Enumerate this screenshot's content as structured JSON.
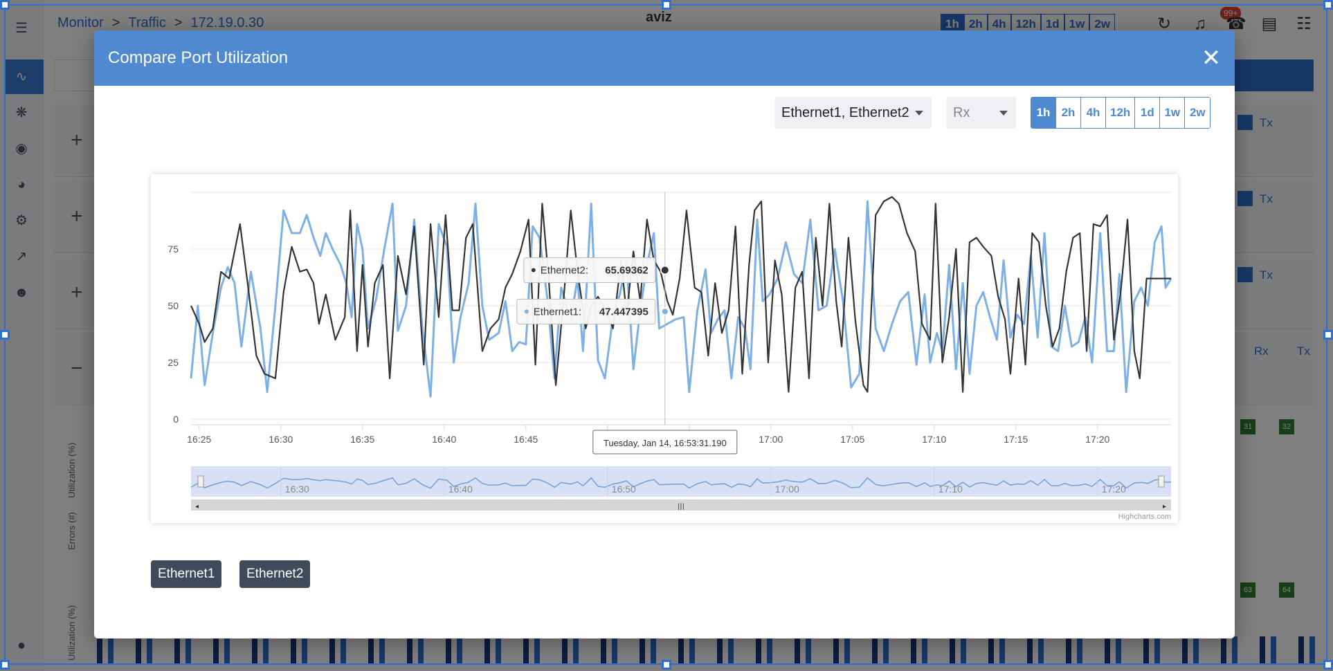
{
  "background": {
    "breadcrumbs": [
      "Monitor",
      "Traffic",
      "172.19.0.30"
    ],
    "logo_text": "aviz",
    "time_ranges": [
      "1h",
      "2h",
      "4h",
      "12h",
      "1d",
      "1w",
      "2w"
    ],
    "notification_badge": "99+",
    "legend_rx": "Rx",
    "legend_tx": "Tx",
    "row_labels": [
      "Utilization (%)",
      "Errors (#)",
      "Utilization (%)"
    ],
    "port_badges": [
      "31",
      "32",
      "63",
      "64"
    ]
  },
  "modal": {
    "title": "Compare Port Utilization",
    "close_icon": "close-icon",
    "port_select": "Ethernet1, Ethernet2",
    "direction_select": "Rx",
    "ranges": [
      "1h",
      "2h",
      "4h",
      "12h",
      "1d",
      "1w",
      "2w"
    ],
    "active_range": "1h",
    "legend_items": [
      "Ethernet1",
      "Ethernet2"
    ],
    "credits": "Highcharts.com"
  },
  "chart_data": {
    "type": "line",
    "title": "",
    "xlabel": "",
    "ylabel": "",
    "ylim": [
      0,
      100
    ],
    "yticks": [
      "0",
      "25",
      "50",
      "75"
    ],
    "xlim": [
      "16:24:30",
      "17:24:30"
    ],
    "xticks": [
      "16:25",
      "16:30",
      "16:35",
      "16:40",
      "16:45",
      "16:50",
      "16:55",
      "17:00",
      "17:05",
      "17:10",
      "17:15",
      "17:20"
    ],
    "navigator_ticks": [
      "16:30",
      "16:40",
      "16:50",
      "17:00",
      "17:10",
      "17:20"
    ],
    "grid": true,
    "legend": "bottom-left",
    "colors": {
      "Ethernet1": "#7cb0e6",
      "Ethernet2": "#333333"
    },
    "tooltip": {
      "header": "Tuesday, Jan 14, 16:53:31.190",
      "x": "16:53:31",
      "entries": [
        {
          "name": "Ethernet2",
          "value": "65.69362"
        },
        {
          "name": "Ethernet1",
          "value": "47.447395"
        }
      ]
    },
    "series": [
      {
        "name": "Ethernet1",
        "points": [
          [
            "16:24:30",
            18
          ],
          [
            "16:24:55",
            50
          ],
          [
            "16:25:20",
            15
          ],
          [
            "16:25:50",
            38
          ],
          [
            "16:26:20",
            58
          ],
          [
            "16:26:45",
            67
          ],
          [
            "16:27:10",
            60
          ],
          [
            "16:27:35",
            32
          ],
          [
            "16:28:10",
            65
          ],
          [
            "16:28:45",
            40
          ],
          [
            "16:29:10",
            12
          ],
          [
            "16:29:40",
            50
          ],
          [
            "16:30:10",
            92
          ],
          [
            "16:30:40",
            82
          ],
          [
            "16:31:10",
            82
          ],
          [
            "16:31:35",
            90
          ],
          [
            "16:32:00",
            80
          ],
          [
            "16:32:25",
            72
          ],
          [
            "16:32:45",
            82
          ],
          [
            "16:33:10",
            75
          ],
          [
            "16:33:40",
            68
          ],
          [
            "16:34:00",
            60
          ],
          [
            "16:34:20",
            45
          ],
          [
            "16:34:40",
            86
          ],
          [
            "16:35:00",
            75
          ],
          [
            "16:35:20",
            40
          ],
          [
            "16:35:50",
            53
          ],
          [
            "16:36:20",
            75
          ],
          [
            "16:36:50",
            95
          ],
          [
            "16:37:10",
            39
          ],
          [
            "16:37:40",
            50
          ],
          [
            "16:38:10",
            88
          ],
          [
            "16:38:40",
            40
          ],
          [
            "16:39:10",
            10
          ],
          [
            "16:39:40",
            86
          ],
          [
            "16:40:10",
            76
          ],
          [
            "16:40:35",
            25
          ],
          [
            "16:41:00",
            45
          ],
          [
            "16:41:30",
            60
          ],
          [
            "16:41:55",
            95
          ],
          [
            "16:42:20",
            50
          ],
          [
            "16:42:45",
            35
          ],
          [
            "16:43:20",
            38
          ],
          [
            "16:43:45",
            52
          ],
          [
            "16:44:10",
            30
          ],
          [
            "16:44:35",
            34
          ],
          [
            "16:45:00",
            33
          ],
          [
            "16:45:25",
            85
          ],
          [
            "16:45:50",
            80
          ],
          [
            "16:46:20",
            52
          ],
          [
            "16:46:45",
            18
          ],
          [
            "16:47:10",
            58
          ],
          [
            "16:47:45",
            44
          ],
          [
            "16:48:10",
            62
          ],
          [
            "16:48:30",
            30
          ],
          [
            "16:49:00",
            95
          ],
          [
            "16:49:25",
            26
          ],
          [
            "16:49:50",
            18
          ],
          [
            "16:50:20",
            45
          ],
          [
            "16:50:45",
            55
          ],
          [
            "16:51:10",
            70
          ],
          [
            "16:51:35",
            22
          ],
          [
            "16:52:00",
            48
          ],
          [
            "16:52:25",
            68
          ],
          [
            "16:52:50",
            82
          ],
          [
            "16:53:10",
            40
          ],
          [
            "16:53:40",
            42
          ],
          [
            "16:54:10",
            44
          ],
          [
            "16:54:40",
            45
          ],
          [
            "16:55:00",
            12
          ],
          [
            "16:55:30",
            48
          ],
          [
            "16:56:00",
            66
          ],
          [
            "16:56:20",
            38
          ],
          [
            "16:56:45",
            44
          ],
          [
            "16:57:10",
            48
          ],
          [
            "16:57:35",
            18
          ],
          [
            "16:58:00",
            45
          ],
          [
            "16:58:25",
            40
          ],
          [
            "16:58:45",
            22
          ],
          [
            "16:59:10",
            88
          ],
          [
            "16:59:30",
            52
          ],
          [
            "16:59:55",
            55
          ],
          [
            "17:00:25",
            62
          ],
          [
            "17:00:55",
            78
          ],
          [
            "17:01:25",
            64
          ],
          [
            "17:01:55",
            60
          ],
          [
            "17:02:25",
            88
          ],
          [
            "17:02:55",
            48
          ],
          [
            "17:03:25",
            50
          ],
          [
            "17:03:55",
            75
          ],
          [
            "17:04:25",
            52
          ],
          [
            "17:04:55",
            14
          ],
          [
            "17:05:25",
            20
          ],
          [
            "17:05:55",
            96
          ],
          [
            "17:06:25",
            40
          ],
          [
            "17:06:55",
            30
          ],
          [
            "17:07:25",
            42
          ],
          [
            "17:07:55",
            52
          ],
          [
            "17:08:25",
            56
          ],
          [
            "17:08:55",
            24
          ],
          [
            "17:09:25",
            55
          ],
          [
            "17:09:45",
            25
          ],
          [
            "17:10:10",
            38
          ],
          [
            "17:10:30",
            30
          ],
          [
            "17:10:55",
            68
          ],
          [
            "17:11:20",
            22
          ],
          [
            "17:11:45",
            60
          ],
          [
            "17:12:10",
            20
          ],
          [
            "17:12:35",
            50
          ],
          [
            "17:13:00",
            56
          ],
          [
            "17:13:25",
            45
          ],
          [
            "17:13:50",
            35
          ],
          [
            "17:14:15",
            70
          ],
          [
            "17:14:40",
            36
          ],
          [
            "17:15:05",
            46
          ],
          [
            "17:15:30",
            42
          ],
          [
            "17:15:55",
            72
          ],
          [
            "17:16:20",
            36
          ],
          [
            "17:16:45",
            82
          ],
          [
            "17:17:10",
            32
          ],
          [
            "17:17:35",
            30
          ],
          [
            "17:18:00",
            50
          ],
          [
            "17:18:25",
            32
          ],
          [
            "17:18:50",
            34
          ],
          [
            "17:19:15",
            45
          ],
          [
            "17:19:40",
            25
          ],
          [
            "17:20:10",
            82
          ],
          [
            "17:20:35",
            30
          ],
          [
            "17:21:00",
            30
          ],
          [
            "17:21:20",
            64
          ],
          [
            "17:21:45",
            12
          ],
          [
            "17:22:15",
            52
          ],
          [
            "17:22:40",
            58
          ],
          [
            "17:23:05",
            50
          ],
          [
            "17:23:30",
            78
          ],
          [
            "17:23:55",
            85
          ],
          [
            "17:24:10",
            58
          ],
          [
            "17:24:30",
            62
          ]
        ]
      },
      {
        "name": "Ethernet2",
        "points": [
          [
            "16:24:30",
            50
          ],
          [
            "16:25:00",
            42
          ],
          [
            "16:25:20",
            34
          ],
          [
            "16:25:50",
            40
          ],
          [
            "16:26:20",
            65
          ],
          [
            "16:26:50",
            62
          ],
          [
            "16:27:30",
            86
          ],
          [
            "16:28:00",
            58
          ],
          [
            "16:28:30",
            28
          ],
          [
            "16:29:00",
            20
          ],
          [
            "16:29:40",
            18
          ],
          [
            "16:30:10",
            56
          ],
          [
            "16:30:40",
            76
          ],
          [
            "16:31:10",
            65
          ],
          [
            "16:31:35",
            66
          ],
          [
            "16:32:00",
            60
          ],
          [
            "16:32:20",
            42
          ],
          [
            "16:32:45",
            55
          ],
          [
            "16:33:20",
            35
          ],
          [
            "16:33:55",
            45
          ],
          [
            "16:34:15",
            92
          ],
          [
            "16:34:40",
            30
          ],
          [
            "16:35:00",
            68
          ],
          [
            "16:35:20",
            32
          ],
          [
            "16:35:45",
            60
          ],
          [
            "16:36:15",
            68
          ],
          [
            "16:36:40",
            18
          ],
          [
            "16:37:10",
            72
          ],
          [
            "16:37:40",
            55
          ],
          [
            "16:38:10",
            85
          ],
          [
            "16:38:45",
            24
          ],
          [
            "16:39:10",
            86
          ],
          [
            "16:39:40",
            45
          ],
          [
            "16:40:05",
            90
          ],
          [
            "16:40:30",
            48
          ],
          [
            "16:40:55",
            48
          ],
          [
            "16:41:20",
            80
          ],
          [
            "16:41:45",
            86
          ],
          [
            "16:42:20",
            30
          ],
          [
            "16:42:50",
            40
          ],
          [
            "16:43:20",
            44
          ],
          [
            "16:43:45",
            58
          ],
          [
            "16:44:10",
            64
          ],
          [
            "16:44:40",
            74
          ],
          [
            "16:45:10",
            88
          ],
          [
            "16:45:35",
            24
          ],
          [
            "16:46:00",
            95
          ],
          [
            "16:46:25",
            60
          ],
          [
            "16:46:50",
            15
          ],
          [
            "16:47:20",
            55
          ],
          [
            "16:47:45",
            92
          ],
          [
            "16:48:10",
            65
          ],
          [
            "16:48:40",
            40
          ],
          [
            "16:49:00",
            50
          ],
          [
            "16:49:25",
            54
          ],
          [
            "16:49:55",
            48
          ],
          [
            "16:50:20",
            40
          ],
          [
            "16:50:50",
            70
          ],
          [
            "16:51:10",
            46
          ],
          [
            "16:51:35",
            74
          ],
          [
            "16:52:00",
            52
          ],
          [
            "16:52:25",
            88
          ],
          [
            "16:52:50",
            70
          ],
          [
            "16:53:15",
            65
          ],
          [
            "16:53:40",
            52
          ],
          [
            "16:54:00",
            46
          ],
          [
            "16:54:25",
            62
          ],
          [
            "16:54:50",
            92
          ],
          [
            "16:55:20",
            58
          ],
          [
            "16:55:45",
            56
          ],
          [
            "16:56:10",
            28
          ],
          [
            "16:56:35",
            60
          ],
          [
            "16:57:00",
            38
          ],
          [
            "16:57:25",
            48
          ],
          [
            "16:57:50",
            85
          ],
          [
            "16:58:15",
            20
          ],
          [
            "16:58:40",
            68
          ],
          [
            "16:59:00",
            92
          ],
          [
            "16:59:25",
            96
          ],
          [
            "16:59:50",
            25
          ],
          [
            "17:00:15",
            70
          ],
          [
            "17:00:40",
            55
          ],
          [
            "17:01:05",
            12
          ],
          [
            "17:01:30",
            58
          ],
          [
            "17:01:55",
            65
          ],
          [
            "17:02:20",
            18
          ],
          [
            "17:02:45",
            80
          ],
          [
            "17:03:10",
            50
          ],
          [
            "17:03:35",
            95
          ],
          [
            "17:04:00",
            52
          ],
          [
            "17:04:20",
            32
          ],
          [
            "17:04:45",
            80
          ],
          [
            "17:05:10",
            44
          ],
          [
            "17:05:40",
            15
          ],
          [
            "17:05:55",
            12
          ],
          [
            "17:06:25",
            90
          ],
          [
            "17:06:55",
            96
          ],
          [
            "17:07:25",
            98
          ],
          [
            "17:07:50",
            95
          ],
          [
            "17:08:20",
            82
          ],
          [
            "17:08:50",
            74
          ],
          [
            "17:09:15",
            42
          ],
          [
            "17:09:45",
            35
          ],
          [
            "17:10:05",
            95
          ],
          [
            "17:10:30",
            25
          ],
          [
            "17:10:55",
            45
          ],
          [
            "17:11:20",
            75
          ],
          [
            "17:11:45",
            12
          ],
          [
            "17:12:10",
            78
          ],
          [
            "17:12:35",
            80
          ],
          [
            "17:13:00",
            76
          ],
          [
            "17:13:30",
            72
          ],
          [
            "17:13:55",
            54
          ],
          [
            "17:14:20",
            44
          ],
          [
            "17:14:40",
            20
          ],
          [
            "17:15:10",
            62
          ],
          [
            "17:15:35",
            24
          ],
          [
            "17:16:00",
            82
          ],
          [
            "17:16:25",
            78
          ],
          [
            "17:16:50",
            50
          ],
          [
            "17:17:15",
            32
          ],
          [
            "17:17:40",
            40
          ],
          [
            "17:18:05",
            65
          ],
          [
            "17:18:30",
            80
          ],
          [
            "17:18:55",
            82
          ],
          [
            "17:19:20",
            30
          ],
          [
            "17:19:45",
            86
          ],
          [
            "17:20:10",
            85
          ],
          [
            "17:20:35",
            90
          ],
          [
            "17:21:00",
            35
          ],
          [
            "17:21:25",
            56
          ],
          [
            "17:21:50",
            88
          ],
          [
            "17:22:15",
            30
          ],
          [
            "17:22:35",
            18
          ],
          [
            "17:23:00",
            62
          ],
          [
            "17:23:30",
            62
          ],
          [
            "17:24:30",
            62
          ]
        ]
      }
    ]
  }
}
